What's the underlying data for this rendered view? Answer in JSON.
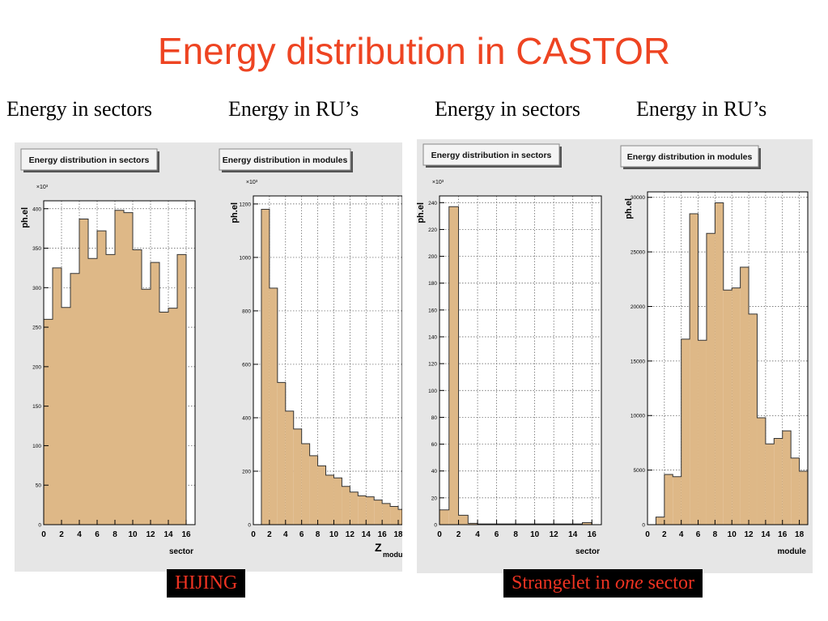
{
  "slide": {
    "title": "Energy distribution in CASTOR",
    "labels": [
      "Energy in sectors",
      "Energy in RU’s",
      "Energy in sectors",
      "Energy in RU’s"
    ],
    "captions": {
      "left": "HIJING",
      "right_pre": "Strangelet in ",
      "right_em": "one",
      "right_post": " sector"
    }
  },
  "colors": {
    "title": "#ee4422",
    "bar_fill": "#deb887",
    "bar_stroke": "#333333",
    "panel_bg": "#e6e6e6",
    "caption_text": "#ee3322"
  },
  "chart_data": [
    {
      "type": "bar",
      "title": "Energy distribution in sectors",
      "ylabel": "ph.el",
      "xlabel": "sector",
      "y_multiplier": "×10³",
      "bin_edges": [
        0,
        1,
        2,
        3,
        4,
        5,
        6,
        7,
        8,
        9,
        10,
        11,
        12,
        13,
        14,
        15,
        16
      ],
      "values": [
        260,
        325,
        275,
        318,
        387,
        337,
        372,
        342,
        398,
        395,
        348,
        298,
        332,
        269,
        274,
        342
      ],
      "xlim": [
        0,
        17
      ],
      "ylim": [
        0,
        410
      ],
      "x_ticks": [
        0,
        2,
        4,
        6,
        8,
        10,
        12,
        14,
        16
      ],
      "y_ticks": [
        0,
        50,
        100,
        150,
        200,
        250,
        300,
        350,
        400
      ],
      "grid": true
    },
    {
      "type": "bar",
      "title": "Energy distribution in modules",
      "ylabel": "ph.el",
      "xlabel": "Z",
      "xlabel_sub": "module",
      "y_multiplier": "×10³",
      "bin_edges": [
        1,
        2,
        3,
        4,
        5,
        6,
        7,
        8,
        9,
        10,
        11,
        12,
        13,
        14,
        15,
        16,
        17,
        18,
        19
      ],
      "values": [
        1180,
        885,
        532,
        425,
        358,
        303,
        258,
        220,
        185,
        175,
        143,
        122,
        108,
        104,
        92,
        79,
        68,
        57
      ],
      "xlim": [
        0,
        18.5
      ],
      "ylim": [
        0,
        1230
      ],
      "x_ticks": [
        0,
        2,
        4,
        6,
        8,
        10,
        12,
        14,
        16,
        18
      ],
      "y_ticks": [
        0,
        200,
        400,
        600,
        800,
        1000,
        1200
      ],
      "grid": true
    },
    {
      "type": "bar",
      "title": "Energy distribution in sectors",
      "ylabel": "ph.el",
      "xlabel": "sector",
      "y_multiplier": "×10³",
      "bin_edges": [
        0,
        1,
        2,
        3,
        4,
        5,
        6,
        7,
        8,
        9,
        10,
        11,
        12,
        13,
        14,
        15,
        16
      ],
      "values": [
        11,
        237,
        7,
        1,
        0.5,
        0.5,
        0.5,
        0.5,
        0.5,
        0.5,
        0.5,
        0.5,
        0.5,
        0.5,
        0.5,
        1.5
      ],
      "xlim": [
        0,
        17
      ],
      "ylim": [
        0,
        245
      ],
      "x_ticks": [
        0,
        2,
        4,
        6,
        8,
        10,
        12,
        14,
        16
      ],
      "y_ticks": [
        0,
        20,
        40,
        60,
        80,
        100,
        120,
        140,
        160,
        180,
        200,
        220,
        240
      ],
      "grid": true
    },
    {
      "type": "bar",
      "title": "Energy distribution in modules",
      "ylabel": "ph.el",
      "xlabel": "module",
      "y_multiplier": "",
      "bin_edges": [
        1,
        2,
        3,
        4,
        5,
        6,
        7,
        8,
        9,
        10,
        11,
        12,
        13,
        14,
        15,
        16,
        17,
        18,
        19
      ],
      "values": [
        700,
        4600,
        4400,
        17000,
        28500,
        16900,
        26700,
        29500,
        21500,
        21700,
        23600,
        19300,
        9800,
        7400,
        7900,
        8600,
        6100,
        4900
      ],
      "xlim": [
        0,
        19
      ],
      "ylim": [
        0,
        30500
      ],
      "x_ticks": [
        0,
        2,
        4,
        6,
        8,
        10,
        12,
        14,
        16,
        18
      ],
      "y_ticks": [
        0,
        5000,
        10000,
        15000,
        20000,
        25000,
        30000
      ],
      "grid": true
    }
  ]
}
